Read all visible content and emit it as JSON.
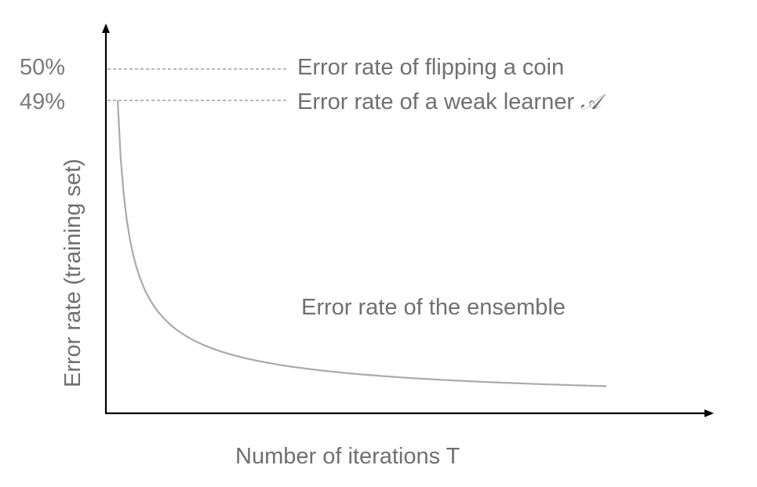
{
  "chart_data": {
    "type": "line",
    "title": "",
    "xlabel": "Number  of iterations T",
    "ylabel": "Error rate (training set)",
    "y_ticks": [
      {
        "value": 50,
        "label": "50%"
      },
      {
        "value": 49,
        "label": "49%"
      }
    ],
    "reference_lines": [
      {
        "value": 50,
        "label": "Error rate of flipping a coin",
        "style": "dashed"
      },
      {
        "value": 49,
        "label": "Error rate of a weak learner",
        "symbol": "𝒜",
        "style": "dashed"
      }
    ],
    "series": [
      {
        "label": "Error rate of the ensemble",
        "style": "solid",
        "color": "#aaaaaa",
        "decay_start": 49
      }
    ],
    "axis_color": "#000000",
    "reference_line_color": "#a0a0a0",
    "grid": false,
    "axis_arrows": true
  }
}
